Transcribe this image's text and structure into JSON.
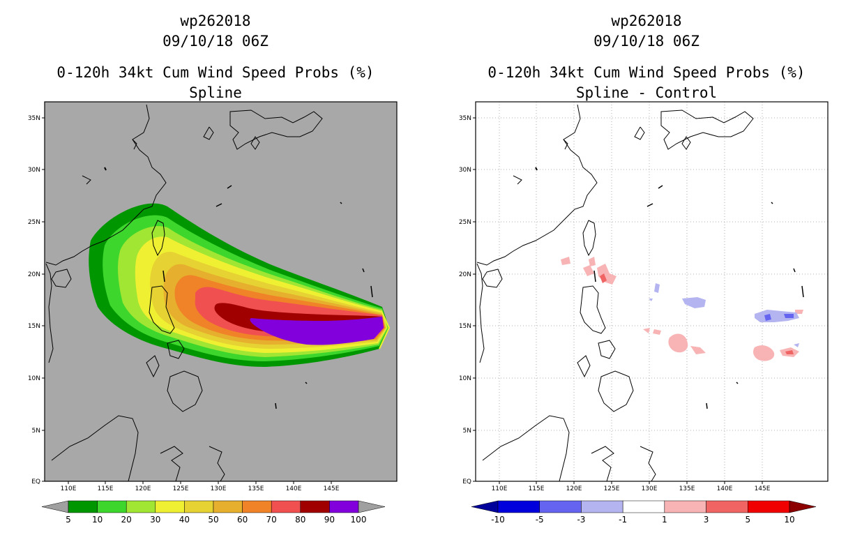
{
  "left": {
    "title_line1": "wp262018",
    "title_line2": "09/10/18 06Z",
    "title_line3": "0-120h 34kt Cum Wind Speed Probs (%)",
    "title_line4": "Spline",
    "colorbar": {
      "labels": [
        "5",
        "10",
        "20",
        "30",
        "40",
        "50",
        "60",
        "70",
        "80",
        "90",
        "100"
      ],
      "colors": [
        "#009600",
        "#3cd62c",
        "#a0e632",
        "#f0f032",
        "#e6d232",
        "#e6af2d",
        "#f08228",
        "#f05050",
        "#a00000",
        "#8200dc"
      ],
      "under_color": "#a0a0a0",
      "over_color": "#a0a0a0"
    },
    "background_color": "#a8a8a8"
  },
  "right": {
    "title_line1": "wp262018",
    "title_line2": "09/10/18 06Z",
    "title_line3": "0-120h 34kt Cum Wind Speed Probs (%)",
    "title_line4": "Spline - Control",
    "colorbar": {
      "labels": [
        "-10",
        "-5",
        "-3",
        "-1",
        "1",
        "3",
        "5",
        "10"
      ],
      "colors": [
        "#0000dc",
        "#6464f0",
        "#b4b4f0",
        "#ffffff",
        "#f8b4b4",
        "#f06464",
        "#f00000"
      ],
      "under_color": "#00009a",
      "over_color": "#8c0000"
    },
    "background_color": "#ffffff"
  },
  "axes": {
    "lat_labels": [
      "35N",
      "30N",
      "25N",
      "20N",
      "15N",
      "10N",
      "5N",
      "EQ"
    ],
    "lon_labels": [
      "110E",
      "115E",
      "120E",
      "125E",
      "130E",
      "135E",
      "140E",
      "145E"
    ]
  }
}
